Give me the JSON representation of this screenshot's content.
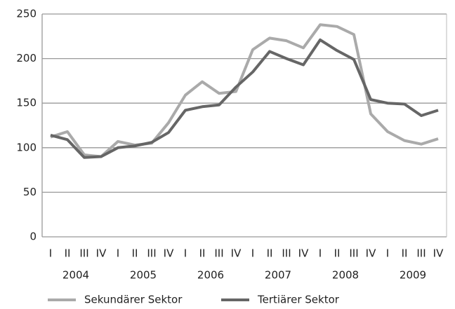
{
  "chart_data": {
    "type": "line",
    "categories": [
      "I",
      "II",
      "III",
      "IV",
      "I",
      "II",
      "III",
      "IV",
      "I",
      "II",
      "III",
      "IV",
      "I",
      "II",
      "III",
      "IV",
      "I",
      "II",
      "III",
      "IV",
      "I",
      "II",
      "III",
      "IV"
    ],
    "groups": [
      "2004",
      "2005",
      "2006",
      "2007",
      "2008",
      "2009"
    ],
    "series": [
      {
        "name": "Sekundärer Sektor",
        "color": "#aaaaaa",
        "values": [
          112,
          118,
          92,
          90,
          107,
          103,
          105,
          128,
          159,
          174,
          161,
          163,
          210,
          223,
          220,
          212,
          238,
          236,
          227,
          138,
          118,
          108,
          104,
          110
        ]
      },
      {
        "name": "Tertiärer Sektor",
        "color": "#666666",
        "values": [
          114,
          109,
          89,
          90,
          100,
          102,
          106,
          117,
          142,
          146,
          148,
          168,
          185,
          208,
          200,
          193,
          221,
          209,
          199,
          154,
          150,
          149,
          136,
          142
        ]
      }
    ],
    "ylim": [
      0,
      250
    ],
    "yticks": [
      0,
      50,
      100,
      150,
      200,
      250
    ],
    "grid": true,
    "legend": "bottom"
  }
}
